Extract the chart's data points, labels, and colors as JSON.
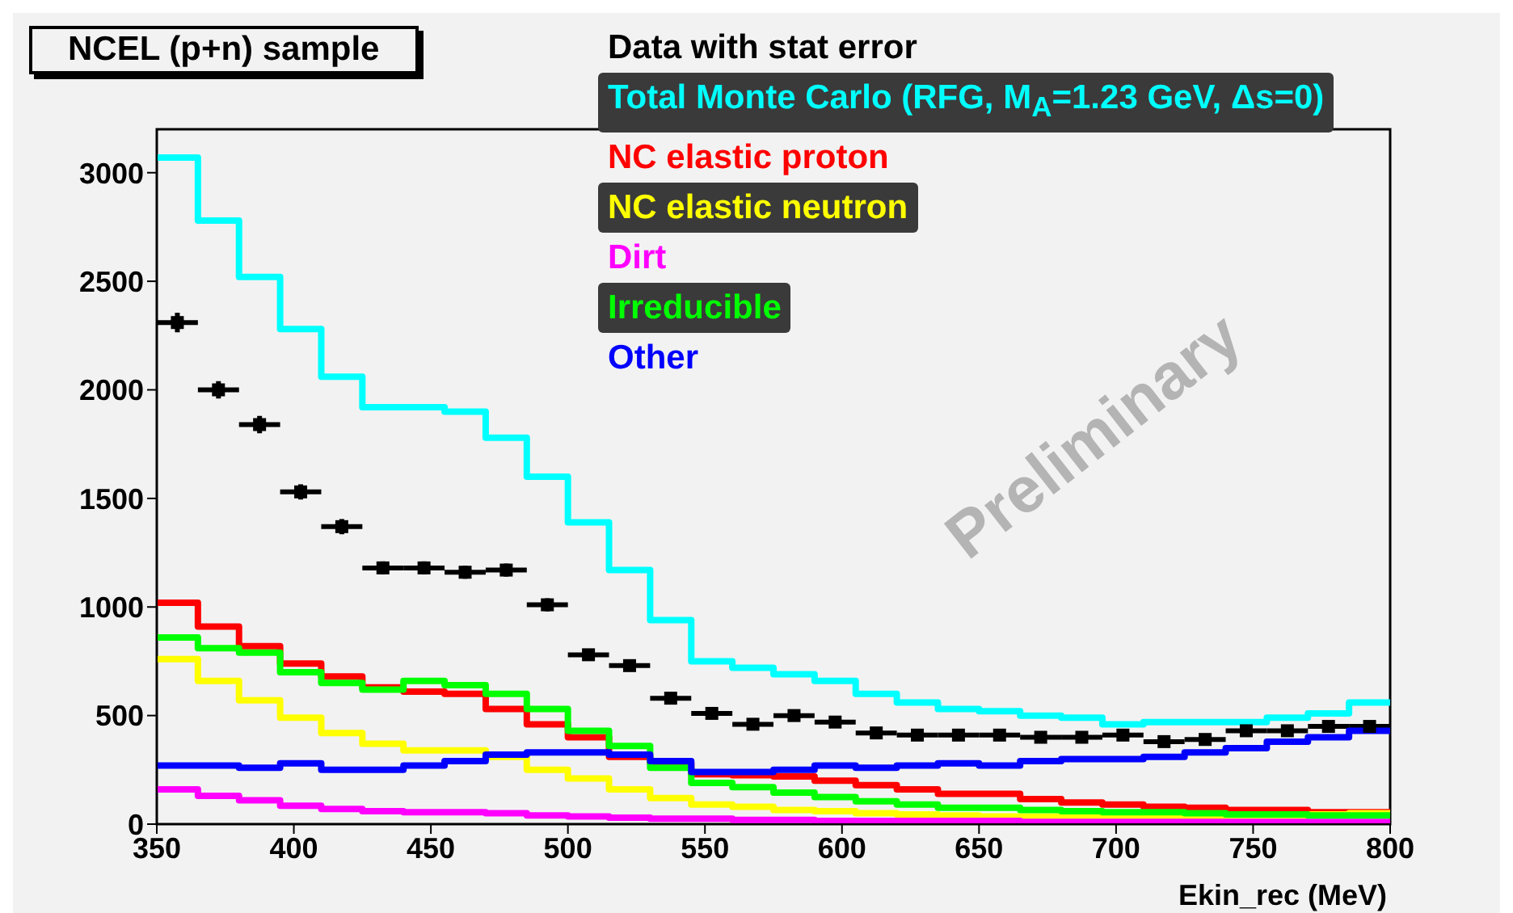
{
  "chart_data": {
    "type": "histogram",
    "title": "NCEL (p+n) sample",
    "xlabel": "Ekin_rec (MeV)",
    "annotations": [
      "Preliminary"
    ],
    "legend": "top right",
    "grid": false,
    "xlim": [
      350,
      800
    ],
    "xticks": [
      350,
      400,
      450,
      500,
      550,
      600,
      650,
      700,
      750,
      800
    ],
    "ylim": [
      0,
      3200
    ],
    "yticks": [
      0,
      500,
      1000,
      1500,
      2000,
      2500,
      3000
    ],
    "bins": [
      350,
      365,
      380,
      395,
      410,
      425,
      440,
      455,
      470,
      485,
      500,
      515,
      530,
      545,
      560,
      575,
      590,
      605,
      620,
      635,
      650,
      665,
      680,
      695,
      710,
      725,
      740,
      755,
      770,
      785,
      800
    ],
    "series": [
      {
        "name": "Data with stat error",
        "type": "scatter",
        "marker": "square",
        "color": "#000000",
        "x": [
          357.5,
          372.5,
          387.5,
          402.5,
          417.5,
          432.5,
          447.5,
          462.5,
          477.5,
          492.5,
          507.5,
          522.5,
          537.5,
          552.5,
          567.5,
          582.5,
          597.5,
          612.5,
          627.5,
          642.5,
          657.5,
          672.5,
          687.5,
          702.5,
          717.5,
          732.5,
          747.5,
          762.5,
          777.5,
          792.5
        ],
        "values": [
          2310,
          2000,
          1840,
          1530,
          1370,
          1180,
          1180,
          1160,
          1170,
          1010,
          780,
          730,
          580,
          510,
          460,
          500,
          470,
          420,
          410,
          410,
          410,
          400,
          400,
          410,
          380,
          390,
          430,
          430,
          450,
          450
        ],
        "errors": [
          45,
          40,
          40,
          35,
          35,
          30,
          30,
          30,
          30,
          30,
          25,
          25,
          25,
          20,
          20,
          20,
          20,
          20,
          20,
          20,
          20,
          20,
          20,
          20,
          20,
          20,
          20,
          20,
          20,
          20
        ],
        "xerrors": [
          7.5,
          7.5,
          7.5,
          7.5,
          7.5,
          7.5,
          7.5,
          7.5,
          7.5,
          7.5,
          7.5,
          7.5,
          7.5,
          7.5,
          7.5,
          7.5,
          7.5,
          7.5,
          7.5,
          7.5,
          7.5,
          7.5,
          7.5,
          7.5,
          7.5,
          7.5,
          7.5,
          7.5,
          7.5,
          7.5
        ]
      },
      {
        "name": "Total Monte Carlo (RFG, M$_{A}$=1.23 GeV, Δs=0)",
        "color": "#00ffff",
        "values": [
          3070,
          2780,
          2520,
          2280,
          2060,
          1920,
          1920,
          1900,
          1780,
          1600,
          1390,
          1170,
          940,
          750,
          720,
          690,
          660,
          600,
          560,
          530,
          520,
          500,
          490,
          460,
          470,
          470,
          470,
          490,
          510,
          560
        ]
      },
      {
        "name": "NC elastic proton",
        "color": "#ff0000",
        "values": [
          1020,
          910,
          820,
          740,
          680,
          630,
          610,
          600,
          530,
          460,
          400,
          310,
          280,
          230,
          225,
          220,
          200,
          180,
          160,
          140,
          140,
          115,
          100,
          90,
          80,
          75,
          65,
          65,
          55,
          55
        ]
      },
      {
        "name": "NC elastic neutron",
        "color": "#ffff00",
        "values": [
          760,
          660,
          570,
          490,
          420,
          370,
          340,
          340,
          310,
          250,
          210,
          160,
          120,
          90,
          80,
          65,
          60,
          50,
          45,
          40,
          35,
          35,
          35,
          35,
          35,
          35,
          40,
          40,
          45,
          50
        ]
      },
      {
        "name": "Dirt",
        "color": "#ff00ff",
        "values": [
          160,
          130,
          110,
          85,
          70,
          60,
          55,
          55,
          50,
          40,
          35,
          30,
          25,
          25,
          20,
          20,
          15,
          15,
          15,
          15,
          15,
          10,
          10,
          10,
          10,
          10,
          10,
          10,
          10,
          10
        ]
      },
      {
        "name": "Irreducible",
        "color": "#00ff00",
        "values": [
          860,
          810,
          790,
          700,
          650,
          620,
          660,
          640,
          600,
          530,
          430,
          360,
          260,
          190,
          170,
          145,
          125,
          105,
          90,
          75,
          75,
          65,
          60,
          55,
          55,
          50,
          45,
          45,
          40,
          40
        ]
      },
      {
        "name": "Other",
        "color": "#0000ff",
        "values": [
          270,
          270,
          260,
          280,
          250,
          250,
          270,
          290,
          320,
          330,
          330,
          320,
          290,
          240,
          240,
          250,
          270,
          260,
          270,
          280,
          270,
          290,
          300,
          300,
          310,
          330,
          350,
          380,
          400,
          430
        ]
      }
    ]
  }
}
